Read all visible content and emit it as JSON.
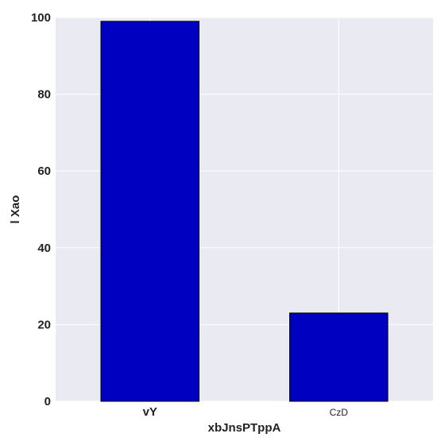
{
  "chart_data": {
    "type": "bar",
    "title": "",
    "xlabel": "xbJnsPTppA",
    "ylabel": "l  Xao",
    "categories": [
      "vY",
      "CzD"
    ],
    "category_label_weight": [
      "bold",
      "normal"
    ],
    "values": [
      99,
      23
    ],
    "ylim": [
      0,
      100
    ],
    "yticks": [
      0,
      20,
      40,
      60,
      80,
      100
    ],
    "grid": true,
    "legend": "none",
    "bar_color": "#0000c0",
    "plot_background": "#eaeaf2"
  }
}
